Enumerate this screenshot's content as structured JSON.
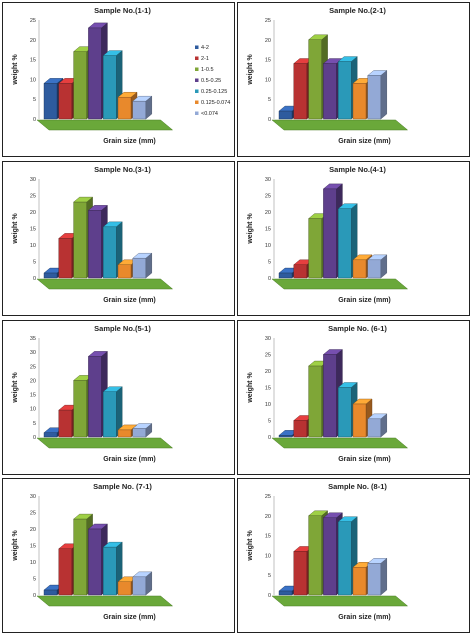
{
  "chart_data": [
    {
      "type": "bar",
      "title": "Sample No.(1-1)",
      "xlabel": "Grain size (mm)",
      "ylabel": "weight %",
      "ylim": [
        0,
        25
      ],
      "yticks": [
        0,
        5,
        10,
        15,
        20,
        25
      ],
      "categories": [
        "4-2",
        "2-1",
        "1-0.5",
        "0.5-0.25",
        "0.25-0.125",
        "0.125-0.074",
        "<0.074"
      ],
      "values": [
        9,
        9,
        17,
        23,
        16,
        5.5,
        4.5
      ],
      "legend": true
    },
    {
      "type": "bar",
      "title": "Sample No.(2-1)",
      "xlabel": "Grain size (mm)",
      "ylabel": "weight %",
      "ylim": [
        0,
        25
      ],
      "yticks": [
        0,
        5,
        10,
        15,
        20,
        25
      ],
      "categories": [
        "4-2",
        "2-1",
        "1-0.5",
        "0.5-0.25",
        "0.25-0.125",
        "0.125-0.074",
        "<0.074"
      ],
      "values": [
        2,
        14,
        20,
        14,
        14.5,
        9,
        11
      ],
      "legend": false
    },
    {
      "type": "bar",
      "title": "Sample No.(3-1)",
      "xlabel": "Grain size (mm)",
      "ylabel": "weight %",
      "ylim": [
        0,
        30
      ],
      "yticks": [
        0,
        5,
        10,
        15,
        20,
        25,
        30
      ],
      "categories": [
        "4-2",
        "2-1",
        "1-0.5",
        "0.5-0.25",
        "0.25-0.125",
        "0.125-0.074",
        "<0.074"
      ],
      "values": [
        1.5,
        12,
        23,
        20.5,
        15.5,
        4,
        6
      ],
      "legend": false
    },
    {
      "type": "bar",
      "title": "Sample No.(4-1)",
      "xlabel": "Grain size (mm)",
      "ylabel": "weight %",
      "ylim": [
        0,
        30
      ],
      "yticks": [
        0,
        5,
        10,
        15,
        20,
        25,
        30
      ],
      "categories": [
        "4-2",
        "2-1",
        "1-0.5",
        "0.5-0.25",
        "0.25-0.125",
        "0.125-0.074",
        "<0.074"
      ],
      "values": [
        1.5,
        4,
        18,
        27,
        21,
        5.5,
        5.5
      ],
      "legend": false
    },
    {
      "type": "bar",
      "title": "Sample No.(5-1)",
      "xlabel": "Grain size (mm)",
      "ylabel": "weight %",
      "ylim": [
        0,
        35
      ],
      "yticks": [
        0,
        5,
        10,
        15,
        20,
        25,
        30,
        35
      ],
      "categories": [
        "4-2",
        "2-1",
        "1-0.5",
        "0.5-0.25",
        "0.25-0.125",
        "0.125-0.074",
        "<0.074"
      ],
      "values": [
        1.5,
        9.5,
        20,
        28.5,
        16,
        2.5,
        3
      ],
      "legend": false
    },
    {
      "type": "bar",
      "title": "Sample No. (6-1)",
      "xlabel": "Grain size (mm)",
      "ylabel": "weight %",
      "ylim": [
        0,
        30
      ],
      "yticks": [
        0,
        5,
        10,
        15,
        20,
        25,
        30
      ],
      "categories": [
        "4-2",
        "2-1",
        "1-0.5",
        "0.5-0.25",
        "0.25-0.125",
        "0.125-0.074",
        "<0.074"
      ],
      "values": [
        0.5,
        5,
        21.5,
        25,
        15,
        10,
        5.5
      ],
      "legend": false
    },
    {
      "type": "bar",
      "title": "Sample No. (7-1)",
      "xlabel": "Grain size (mm)",
      "ylabel": "weight %",
      "ylim": [
        0,
        30
      ],
      "yticks": [
        0,
        5,
        10,
        15,
        20,
        25,
        30
      ],
      "categories": [
        "4-2",
        "2-1",
        "1-0.5",
        "0.5-0.25",
        "0.25-0.125",
        "0.125-0.074",
        "<0.074"
      ],
      "values": [
        1.5,
        14,
        23,
        20,
        14.5,
        4,
        5.5
      ],
      "legend": false
    },
    {
      "type": "bar",
      "title": "Sample No. (8-1)",
      "xlabel": "Grain size (mm)",
      "ylabel": "weight %",
      "ylim": [
        0,
        25
      ],
      "yticks": [
        0,
        5,
        10,
        15,
        20,
        25
      ],
      "categories": [
        "4-2",
        "2-1",
        "1-0.5",
        "0.5-0.25",
        "0.25-0.125",
        "0.125-0.074",
        "<0.074"
      ],
      "values": [
        1,
        11,
        20,
        19.5,
        18.5,
        7,
        8
      ],
      "legend": false
    }
  ],
  "colors": [
    "#2e5b9e",
    "#b83232",
    "#7fa637",
    "#5e3f8c",
    "#2a99b8",
    "#e8892c",
    "#93a9d6"
  ],
  "floor_color": "#6aa83a"
}
